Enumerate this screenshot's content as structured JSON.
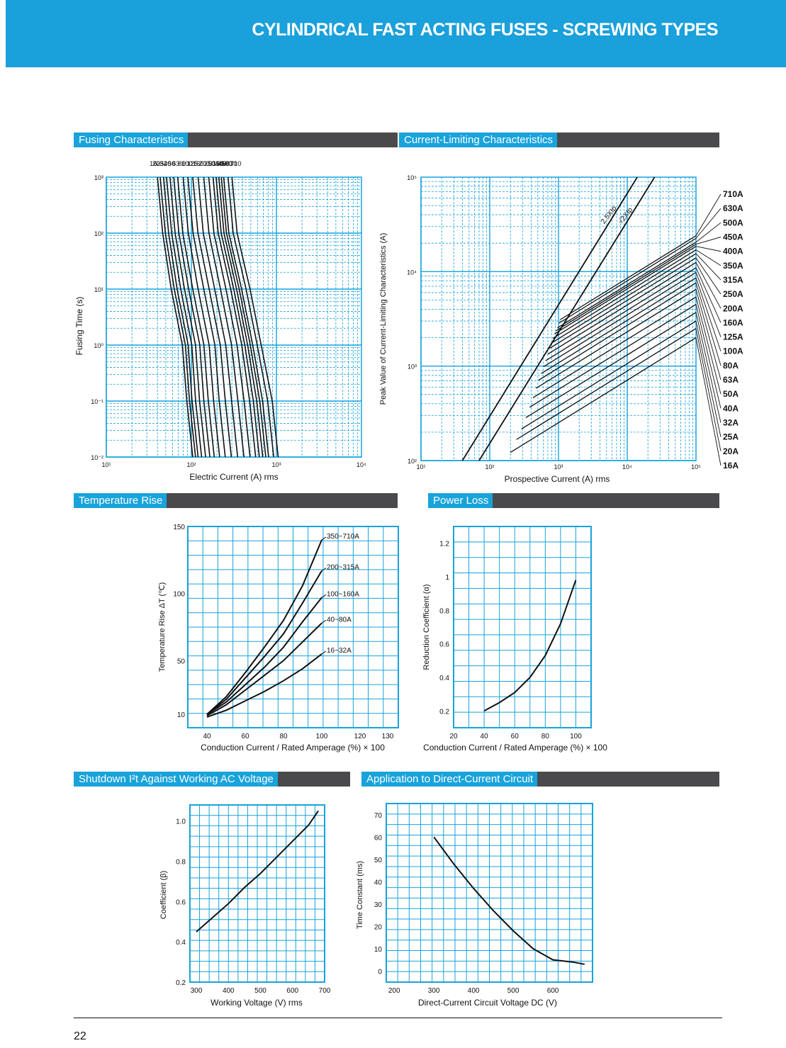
{
  "header": {
    "title": "CYLINDRICAL FAST ACTING FUSES - SCREWING TYPES"
  },
  "sections": {
    "fusing": "Fusing Characteristics",
    "limiting": "Current-Limiting Characteristics",
    "temperature": "Temperature Rise",
    "power_loss": "Power Loss",
    "shutdown": "Shutdown I²t Against Working AC Voltage",
    "dc": "Application to Direct-Current Circuit"
  },
  "page_number": "22",
  "colors": {
    "header_blue": "#1aa0db",
    "grid_blue": "#18a2dc",
    "section_bar": "#4a4a4c"
  },
  "chart_data": [
    {
      "id": "fusing",
      "type": "line",
      "x_scale": "log",
      "y_scale": "log",
      "xlim": [
        10,
        10000
      ],
      "ylim": [
        0.01,
        1000
      ],
      "xlabel": "Electric Current (A) rms",
      "ylabel": "Fusing Time (s)",
      "x_ticks": [
        "10¹",
        "10²",
        "10³",
        "10⁴"
      ],
      "y_ticks": [
        "10³",
        "10²",
        "10¹",
        "10⁰",
        "10⁻¹",
        "10⁻²"
      ],
      "ratings": [
        "16",
        "20",
        "25",
        "32",
        "40",
        "50",
        "63",
        "80",
        "100",
        "125",
        "160",
        "200",
        "250",
        "315",
        "350",
        "400",
        "450",
        "500",
        "630",
        "710"
      ],
      "series_current_at_1000s": [
        40,
        43,
        47,
        51,
        56,
        62,
        69,
        80,
        91,
        104,
        120,
        140,
        160,
        180,
        195,
        210,
        225,
        240,
        270,
        300
      ],
      "series_current_at_10s": [
        58,
        63,
        68,
        75,
        83,
        93,
        104,
        120,
        140,
        162,
        188,
        220,
        255,
        290,
        315,
        340,
        365,
        390,
        440,
        490
      ],
      "series_current_at_0_01s": [
        104,
        112,
        120,
        132,
        147,
        165,
        186,
        215,
        250,
        295,
        350,
        415,
        490,
        570,
        630,
        690,
        750,
        810,
        930,
        1050
      ],
      "grid": true
    },
    {
      "id": "limiting",
      "type": "line",
      "x_scale": "log",
      "y_scale": "log",
      "xlim": [
        10,
        100000
      ],
      "ylim": [
        100,
        100000
      ],
      "xlabel": "Prospective Current (A) rms",
      "ylabel": "Peak Value of Current-Limiting Characteristics (A)",
      "x_ticks": [
        "10¹",
        "10²",
        "10³",
        "10⁴",
        "10⁵"
      ],
      "y_ticks": [
        "10⁵",
        "10⁴",
        "10³",
        "10²"
      ],
      "reference_lines": [
        {
          "label": "2.5XIp",
          "points": [
            [
              40,
              100
            ],
            [
              14000,
              100000
            ]
          ]
        },
        {
          "label": "√2XIp",
          "points": [
            [
              70,
              100
            ],
            [
              25000,
              100000
            ]
          ]
        }
      ],
      "ratings": [
        "710A",
        "630A",
        "500A",
        "450A",
        "400A",
        "350A",
        "315A",
        "250A",
        "200A",
        "160A",
        "125A",
        "100A",
        "80A",
        "63A",
        "50A",
        "40A",
        "32A",
        "25A",
        "20A",
        "16A"
      ],
      "peak_at_100kA": [
        24000,
        22500,
        20500,
        19500,
        18500,
        17000,
        15500,
        14000,
        12500,
        11000,
        9800,
        8600,
        7600,
        6500,
        5400,
        4500,
        3700,
        3000,
        2500,
        2000
      ],
      "grid": true
    },
    {
      "id": "temperature",
      "type": "line",
      "xlim": [
        30,
        140
      ],
      "ylim": [
        0,
        150
      ],
      "xlabel": "Conduction Current / Rated Amperage (%) × 100",
      "ylabel": "Temperature Rise ΔT (℃)",
      "x_ticks": [
        "40",
        "60",
        "80",
        "100",
        "120",
        "130"
      ],
      "y_ticks": [
        "150",
        "100",
        "50",
        "10"
      ],
      "series": [
        {
          "name": "350~710A",
          "x": [
            40,
            50,
            60,
            70,
            80,
            90,
            100
          ],
          "y": [
            10,
            23,
            41,
            60,
            80,
            106,
            140
          ]
        },
        {
          "name": "200~315A",
          "x": [
            40,
            50,
            60,
            70,
            80,
            90,
            100
          ],
          "y": [
            10,
            21,
            37,
            53,
            70,
            93,
            117
          ]
        },
        {
          "name": "100~160A",
          "x": [
            40,
            50,
            60,
            70,
            80,
            90,
            100
          ],
          "y": [
            10,
            19,
            32,
            45,
            60,
            79,
            97
          ]
        },
        {
          "name": "40~80A",
          "x": [
            40,
            50,
            60,
            70,
            80,
            90,
            100
          ],
          "y": [
            9,
            17,
            28,
            39,
            50,
            64,
            78
          ]
        },
        {
          "name": "16~32A",
          "x": [
            40,
            50,
            60,
            70,
            80,
            90,
            100
          ],
          "y": [
            8,
            13,
            20,
            27,
            35,
            44,
            55
          ]
        }
      ],
      "grid": true
    },
    {
      "id": "power_loss",
      "type": "line",
      "xlim": [
        20,
        110
      ],
      "ylim": [
        0.1,
        1.3
      ],
      "xlabel": "Conduction Current / Rated Amperage (%) × 100",
      "ylabel": "Reduction Coefficient (α)",
      "x_ticks": [
        "20",
        "40",
        "60",
        "80",
        "100"
      ],
      "y_ticks": [
        "1.2",
        "1",
        "0.8",
        "0.6",
        "0.4",
        "0.2"
      ],
      "series": [
        {
          "x": [
            40,
            50,
            60,
            70,
            80,
            90,
            100
          ],
          "y": [
            0.2,
            0.25,
            0.31,
            0.4,
            0.53,
            0.72,
            0.98
          ]
        }
      ],
      "grid": true
    },
    {
      "id": "shutdown",
      "type": "line",
      "xlim": [
        280,
        700
      ],
      "ylim": [
        0.2,
        1.08
      ],
      "xlabel": "Working Voltage (V) rms",
      "ylabel": "Coefficient (β)",
      "x_ticks": [
        "300",
        "400",
        "500",
        "600",
        "700"
      ],
      "y_ticks": [
        "1.0",
        "0.8",
        "0.6",
        "0.4",
        "0.2"
      ],
      "series": [
        {
          "x": [
            300,
            350,
            400,
            450,
            500,
            550,
            600,
            650,
            680
          ],
          "y": [
            0.45,
            0.52,
            0.59,
            0.67,
            0.74,
            0.82,
            0.9,
            0.98,
            1.05
          ]
        }
      ],
      "grid": true
    },
    {
      "id": "dc",
      "type": "line",
      "xlim": [
        180,
        700
      ],
      "ylim": [
        -5,
        75
      ],
      "xlabel": "Direct-Current Circuit Voltage DC (V)",
      "ylabel": "Time Constant (ms)",
      "x_ticks": [
        "200",
        "300",
        "400",
        "500",
        "600"
      ],
      "y_ticks": [
        "70",
        "60",
        "50",
        "40",
        "30",
        "20",
        "10",
        "0"
      ],
      "series": [
        {
          "x": [
            300,
            350,
            400,
            450,
            500,
            550,
            600,
            650,
            680
          ],
          "y": [
            60,
            48,
            37,
            27,
            18,
            10,
            5,
            4,
            3
          ]
        }
      ],
      "grid": true
    }
  ]
}
